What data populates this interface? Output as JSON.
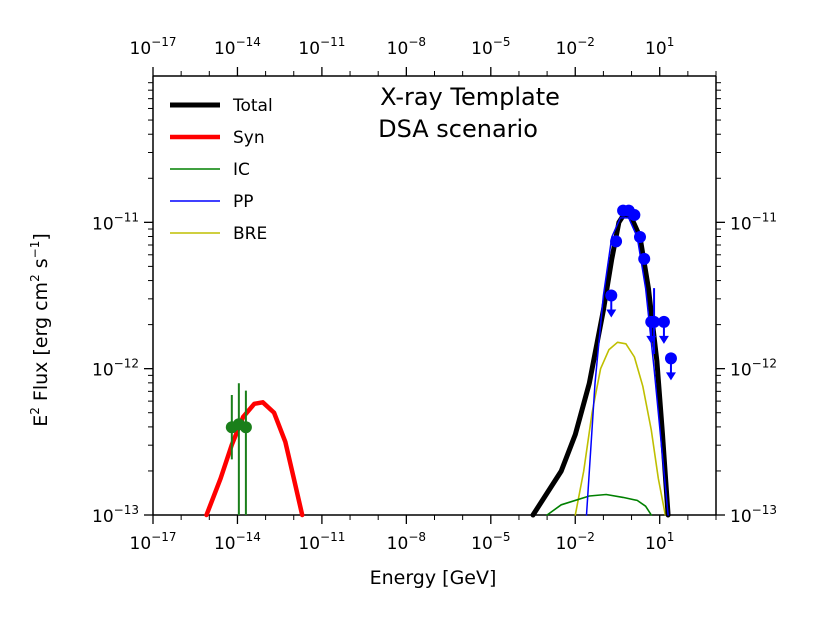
{
  "chart_data": {
    "type": "line",
    "title_lines": [
      "X-ray Template",
      "DSA scenario"
    ],
    "xlabel": "Energy [GeV]",
    "ylabel_prefix": "E",
    "ylabel_sup": "2",
    "ylabel_mid": " Flux [erg cm",
    "ylabel_sup2": "2",
    "ylabel_mid2": " s",
    "ylabel_sup3": "−1",
    "ylabel_suffix": "]",
    "xscale": "log",
    "yscale": "log",
    "xlim_log10": [
      -17,
      3
    ],
    "ylim_log10": [
      -13,
      -10
    ],
    "x_ticks": [
      {
        "exp": -17,
        "base": "10",
        "sup": "−17"
      },
      {
        "exp": -14,
        "base": "10",
        "sup": "−14"
      },
      {
        "exp": -11,
        "base": "10",
        "sup": "−11"
      },
      {
        "exp": -8,
        "base": "10",
        "sup": "−8"
      },
      {
        "exp": -5,
        "base": "10",
        "sup": "−5"
      },
      {
        "exp": -2,
        "base": "10",
        "sup": "−2"
      },
      {
        "exp": 1,
        "base": "10",
        "sup": "1"
      }
    ],
    "y_ticks": [
      {
        "exp": -13,
        "base": "10",
        "sup": "−13"
      },
      {
        "exp": -12,
        "base": "10",
        "sup": "−12"
      },
      {
        "exp": -11,
        "base": "10",
        "sup": "−11"
      }
    ],
    "legend": [
      {
        "name": "Total",
        "color": "#000000"
      },
      {
        "name": "Syn",
        "color": "#ff0000"
      },
      {
        "name": "IC",
        "color": "#008000"
      },
      {
        "name": "PP",
        "color": "#0000ff"
      },
      {
        "name": "BRE",
        "color": "#bfbf00"
      }
    ],
    "series": [
      {
        "name": "Total",
        "color": "#000000",
        "points_log10": [
          [
            -3.5,
            -13.0
          ],
          [
            -2.5,
            -12.7
          ],
          [
            -2.0,
            -12.45
          ],
          [
            -1.5,
            -12.1
          ],
          [
            -1.0,
            -11.6
          ],
          [
            -0.7,
            -11.25
          ],
          [
            -0.45,
            -11.0
          ],
          [
            -0.25,
            -10.94
          ],
          [
            0.0,
            -10.97
          ],
          [
            0.3,
            -11.1
          ],
          [
            0.6,
            -11.45
          ],
          [
            0.9,
            -11.95
          ],
          [
            1.1,
            -12.45
          ],
          [
            1.3,
            -13.0
          ]
        ]
      },
      {
        "name": "Syn",
        "color": "#ff0000",
        "points_log10": [
          [
            -15.1,
            -13.0
          ],
          [
            -14.6,
            -12.75
          ],
          [
            -14.2,
            -12.52
          ],
          [
            -13.8,
            -12.33
          ],
          [
            -13.4,
            -12.24
          ],
          [
            -13.1,
            -12.23
          ],
          [
            -12.7,
            -12.3
          ],
          [
            -12.3,
            -12.5
          ],
          [
            -12.0,
            -12.75
          ],
          [
            -11.7,
            -13.0
          ]
        ]
      },
      {
        "name": "IC",
        "color": "#008000",
        "points_log10": [
          [
            -3.0,
            -13.0
          ],
          [
            -2.5,
            -12.93
          ],
          [
            -1.5,
            -12.87
          ],
          [
            -0.9,
            -12.86
          ],
          [
            -0.3,
            -12.88
          ],
          [
            0.2,
            -12.9
          ],
          [
            0.5,
            -12.94
          ],
          [
            0.7,
            -13.0
          ]
        ]
      },
      {
        "name": "PP",
        "color": "#0000ff",
        "points_log10": [
          [
            -1.6,
            -13.0
          ],
          [
            -1.3,
            -12.1
          ],
          [
            -1.0,
            -11.5
          ],
          [
            -0.7,
            -11.1
          ],
          [
            -0.4,
            -10.97
          ],
          [
            -0.1,
            -10.97
          ],
          [
            0.2,
            -11.1
          ],
          [
            0.5,
            -11.45
          ],
          [
            0.8,
            -12.0
          ],
          [
            1.05,
            -12.5
          ],
          [
            1.3,
            -13.0
          ]
        ]
      },
      {
        "name": "BRE",
        "color": "#bfbf00",
        "points_log10": [
          [
            -2.0,
            -13.0
          ],
          [
            -1.7,
            -12.7
          ],
          [
            -1.4,
            -12.3
          ],
          [
            -1.1,
            -12.0
          ],
          [
            -0.8,
            -11.87
          ],
          [
            -0.5,
            -11.82
          ],
          [
            -0.2,
            -11.83
          ],
          [
            0.1,
            -11.92
          ],
          [
            0.4,
            -12.12
          ],
          [
            0.7,
            -12.42
          ],
          [
            0.95,
            -12.75
          ],
          [
            1.2,
            -13.0
          ]
        ]
      }
    ],
    "data_points_blue": [
      {
        "x": -0.55,
        "y": -11.13
      },
      {
        "x": -0.3,
        "y": -10.92
      },
      {
        "x": -0.1,
        "y": -10.92
      },
      {
        "x": 0.1,
        "y": -10.95
      },
      {
        "x": 0.3,
        "y": -11.1
      },
      {
        "x": 0.45,
        "y": -11.25
      }
    ],
    "upper_limits_blue": [
      {
        "x": -0.72,
        "y": -11.5
      },
      {
        "x": 0.7,
        "y": -11.68
      },
      {
        "x": 1.15,
        "y": -11.68
      },
      {
        "x": 1.4,
        "y": -11.93
      }
    ],
    "error_points_blue": [
      {
        "x": 0.8,
        "y": -11.68,
        "ylow": -11.9,
        "yhigh": -11.45
      }
    ],
    "data_points_green": [
      {
        "x": -14.2,
        "y": -12.4,
        "ylow": -12.62,
        "yhigh": -12.18
      },
      {
        "x": -13.95,
        "y": -12.38,
        "ylow": -13.0,
        "yhigh": -12.1
      },
      {
        "x": -13.7,
        "y": -12.4,
        "ylow": -13.0,
        "yhigh": -12.15
      }
    ]
  }
}
